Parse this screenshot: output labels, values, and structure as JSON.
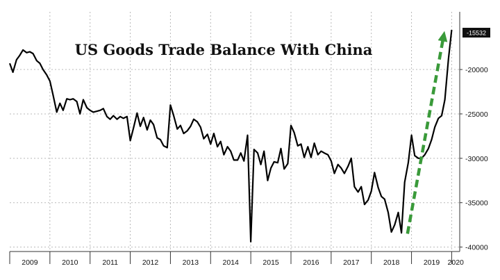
{
  "chart_data": {
    "type": "line",
    "title": "US Goods Trade Balance With China",
    "xlabel": "",
    "ylabel": "",
    "x_tick_labels": [
      "2009",
      "2010",
      "2011",
      "2012",
      "2013",
      "2014",
      "2015",
      "2016",
      "2017",
      "2018",
      "2019",
      "2020"
    ],
    "y_tick_labels": [
      "-20000",
      "-25000",
      "-30000",
      "-35000",
      "-40000"
    ],
    "y_ticks": [
      -20000,
      -25000,
      -30000,
      -35000,
      -40000
    ],
    "ylim": [
      -40500,
      -13500
    ],
    "xlim": [
      2009.0,
      2020.2
    ],
    "grid": true,
    "last_value_label": "-15532",
    "line_color": "#000000",
    "arrow_color": "#3a9a3a",
    "trend_arrow": {
      "from": [
        2018.9,
        -38500
      ],
      "to": [
        2019.8,
        -16200
      ]
    },
    "series": [
      {
        "points": [
          [
            2009.0,
            -19300
          ],
          [
            2009.08,
            -20300
          ],
          [
            2009.17,
            -18900
          ],
          [
            2009.25,
            -18400
          ],
          [
            2009.33,
            -17800
          ],
          [
            2009.42,
            -18100
          ],
          [
            2009.5,
            -18000
          ],
          [
            2009.58,
            -18200
          ],
          [
            2009.67,
            -19000
          ],
          [
            2009.75,
            -19300
          ],
          [
            2009.83,
            -20000
          ],
          [
            2009.92,
            -20600
          ],
          [
            2010.0,
            -21300
          ],
          [
            2010.08,
            -22900
          ],
          [
            2010.17,
            -24800
          ],
          [
            2010.25,
            -23800
          ],
          [
            2010.33,
            -24600
          ],
          [
            2010.42,
            -23300
          ],
          [
            2010.5,
            -23400
          ],
          [
            2010.58,
            -23300
          ],
          [
            2010.67,
            -23600
          ],
          [
            2010.75,
            -25000
          ],
          [
            2010.83,
            -23400
          ],
          [
            2010.92,
            -24300
          ],
          [
            2011.0,
            -24600
          ],
          [
            2011.08,
            -24800
          ],
          [
            2011.17,
            -24700
          ],
          [
            2011.25,
            -24600
          ],
          [
            2011.33,
            -24400
          ],
          [
            2011.42,
            -25300
          ],
          [
            2011.5,
            -25600
          ],
          [
            2011.58,
            -25200
          ],
          [
            2011.67,
            -25600
          ],
          [
            2011.75,
            -25300
          ],
          [
            2011.83,
            -25500
          ],
          [
            2011.92,
            -25300
          ],
          [
            2012.0,
            -28000
          ],
          [
            2012.08,
            -26600
          ],
          [
            2012.17,
            -24900
          ],
          [
            2012.25,
            -26400
          ],
          [
            2012.33,
            -25400
          ],
          [
            2012.42,
            -26800
          ],
          [
            2012.5,
            -25700
          ],
          [
            2012.58,
            -26200
          ],
          [
            2012.67,
            -27700
          ],
          [
            2012.75,
            -27900
          ],
          [
            2012.83,
            -28600
          ],
          [
            2012.92,
            -28800
          ],
          [
            2013.0,
            -24000
          ],
          [
            2013.08,
            -25200
          ],
          [
            2013.17,
            -26700
          ],
          [
            2013.25,
            -26300
          ],
          [
            2013.33,
            -27200
          ],
          [
            2013.42,
            -26900
          ],
          [
            2013.5,
            -26400
          ],
          [
            2013.58,
            -25600
          ],
          [
            2013.67,
            -25900
          ],
          [
            2013.75,
            -26500
          ],
          [
            2013.83,
            -27800
          ],
          [
            2013.92,
            -27300
          ],
          [
            2014.0,
            -28400
          ],
          [
            2014.08,
            -27200
          ],
          [
            2014.17,
            -28700
          ],
          [
            2014.25,
            -28100
          ],
          [
            2014.33,
            -29600
          ],
          [
            2014.42,
            -28700
          ],
          [
            2014.5,
            -29200
          ],
          [
            2014.58,
            -30200
          ],
          [
            2014.67,
            -30200
          ],
          [
            2014.75,
            -29400
          ],
          [
            2014.83,
            -30300
          ],
          [
            2014.92,
            -27400
          ],
          [
            2015.0,
            -39400
          ],
          [
            2015.08,
            -29000
          ],
          [
            2015.17,
            -29400
          ],
          [
            2015.25,
            -30700
          ],
          [
            2015.33,
            -29200
          ],
          [
            2015.42,
            -32500
          ],
          [
            2015.5,
            -31100
          ],
          [
            2015.58,
            -30400
          ],
          [
            2015.67,
            -30500
          ],
          [
            2015.75,
            -28900
          ],
          [
            2015.83,
            -31200
          ],
          [
            2015.92,
            -30600
          ],
          [
            2016.0,
            -26300
          ],
          [
            2016.08,
            -27100
          ],
          [
            2016.17,
            -28600
          ],
          [
            2016.25,
            -28400
          ],
          [
            2016.33,
            -29900
          ],
          [
            2016.42,
            -28700
          ],
          [
            2016.5,
            -29900
          ],
          [
            2016.58,
            -28300
          ],
          [
            2016.67,
            -29600
          ],
          [
            2016.75,
            -29200
          ],
          [
            2016.83,
            -29400
          ],
          [
            2016.92,
            -29600
          ],
          [
            2017.0,
            -30300
          ],
          [
            2017.08,
            -31700
          ],
          [
            2017.17,
            -30700
          ],
          [
            2017.25,
            -31100
          ],
          [
            2017.33,
            -31700
          ],
          [
            2017.42,
            -30900
          ],
          [
            2017.5,
            -30000
          ],
          [
            2017.58,
            -33200
          ],
          [
            2017.67,
            -33800
          ],
          [
            2017.75,
            -33200
          ],
          [
            2017.83,
            -35200
          ],
          [
            2017.92,
            -34700
          ],
          [
            2018.0,
            -33700
          ],
          [
            2018.08,
            -31600
          ],
          [
            2018.17,
            -33300
          ],
          [
            2018.25,
            -34300
          ],
          [
            2018.33,
            -34600
          ],
          [
            2018.42,
            -36100
          ],
          [
            2018.5,
            -38300
          ],
          [
            2018.58,
            -37500
          ],
          [
            2018.67,
            -36100
          ],
          [
            2018.75,
            -38400
          ],
          [
            2018.83,
            -32700
          ],
          [
            2018.92,
            -30500
          ],
          [
            2019.0,
            -27400
          ],
          [
            2019.08,
            -29700
          ],
          [
            2019.17,
            -30000
          ],
          [
            2019.25,
            -30000
          ],
          [
            2019.33,
            -29600
          ],
          [
            2019.42,
            -28900
          ],
          [
            2019.5,
            -27900
          ],
          [
            2019.58,
            -26500
          ],
          [
            2019.67,
            -25500
          ],
          [
            2019.75,
            -25200
          ],
          [
            2019.83,
            -23400
          ],
          [
            2019.92,
            -18800
          ],
          [
            2020.0,
            -15532
          ]
        ]
      }
    ]
  }
}
